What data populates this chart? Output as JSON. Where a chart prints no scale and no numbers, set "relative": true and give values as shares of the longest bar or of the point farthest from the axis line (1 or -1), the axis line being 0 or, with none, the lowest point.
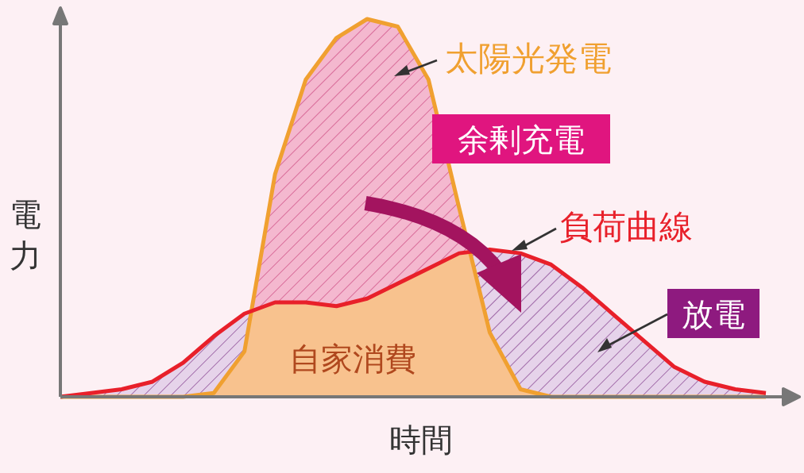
{
  "chart_data": {
    "type": "area",
    "relative": true,
    "xlabel": "時間",
    "ylabel": "電力",
    "categories": [
      null,
      null,
      null,
      null,
      null,
      null,
      null,
      null,
      null,
      null,
      null,
      null,
      null,
      null,
      null,
      null,
      null,
      null,
      null,
      null,
      null,
      null,
      null,
      null
    ],
    "series": [
      {
        "name": "太陽光発電",
        "color": "#f0a030",
        "values": [
          0,
          0,
          0,
          0,
          0,
          0.01,
          0.12,
          0.59,
          0.84,
          0.95,
          1.0,
          0.98,
          0.84,
          0.5,
          0.17,
          0.02,
          0,
          0,
          0,
          0,
          0,
          0,
          0,
          0
        ]
      },
      {
        "name": "負荷曲線",
        "color": "#e8202a",
        "values": [
          0,
          0.01,
          0.02,
          0.04,
          0.09,
          0.16,
          0.22,
          0.25,
          0.25,
          0.24,
          0.26,
          0.3,
          0.34,
          0.38,
          0.39,
          0.38,
          0.35,
          0.29,
          0.22,
          0.15,
          0.08,
          0.04,
          0.02,
          0.01
        ]
      }
    ],
    "annotations": [
      "余剰充電",
      "自家消費",
      "放電"
    ]
  }
}
